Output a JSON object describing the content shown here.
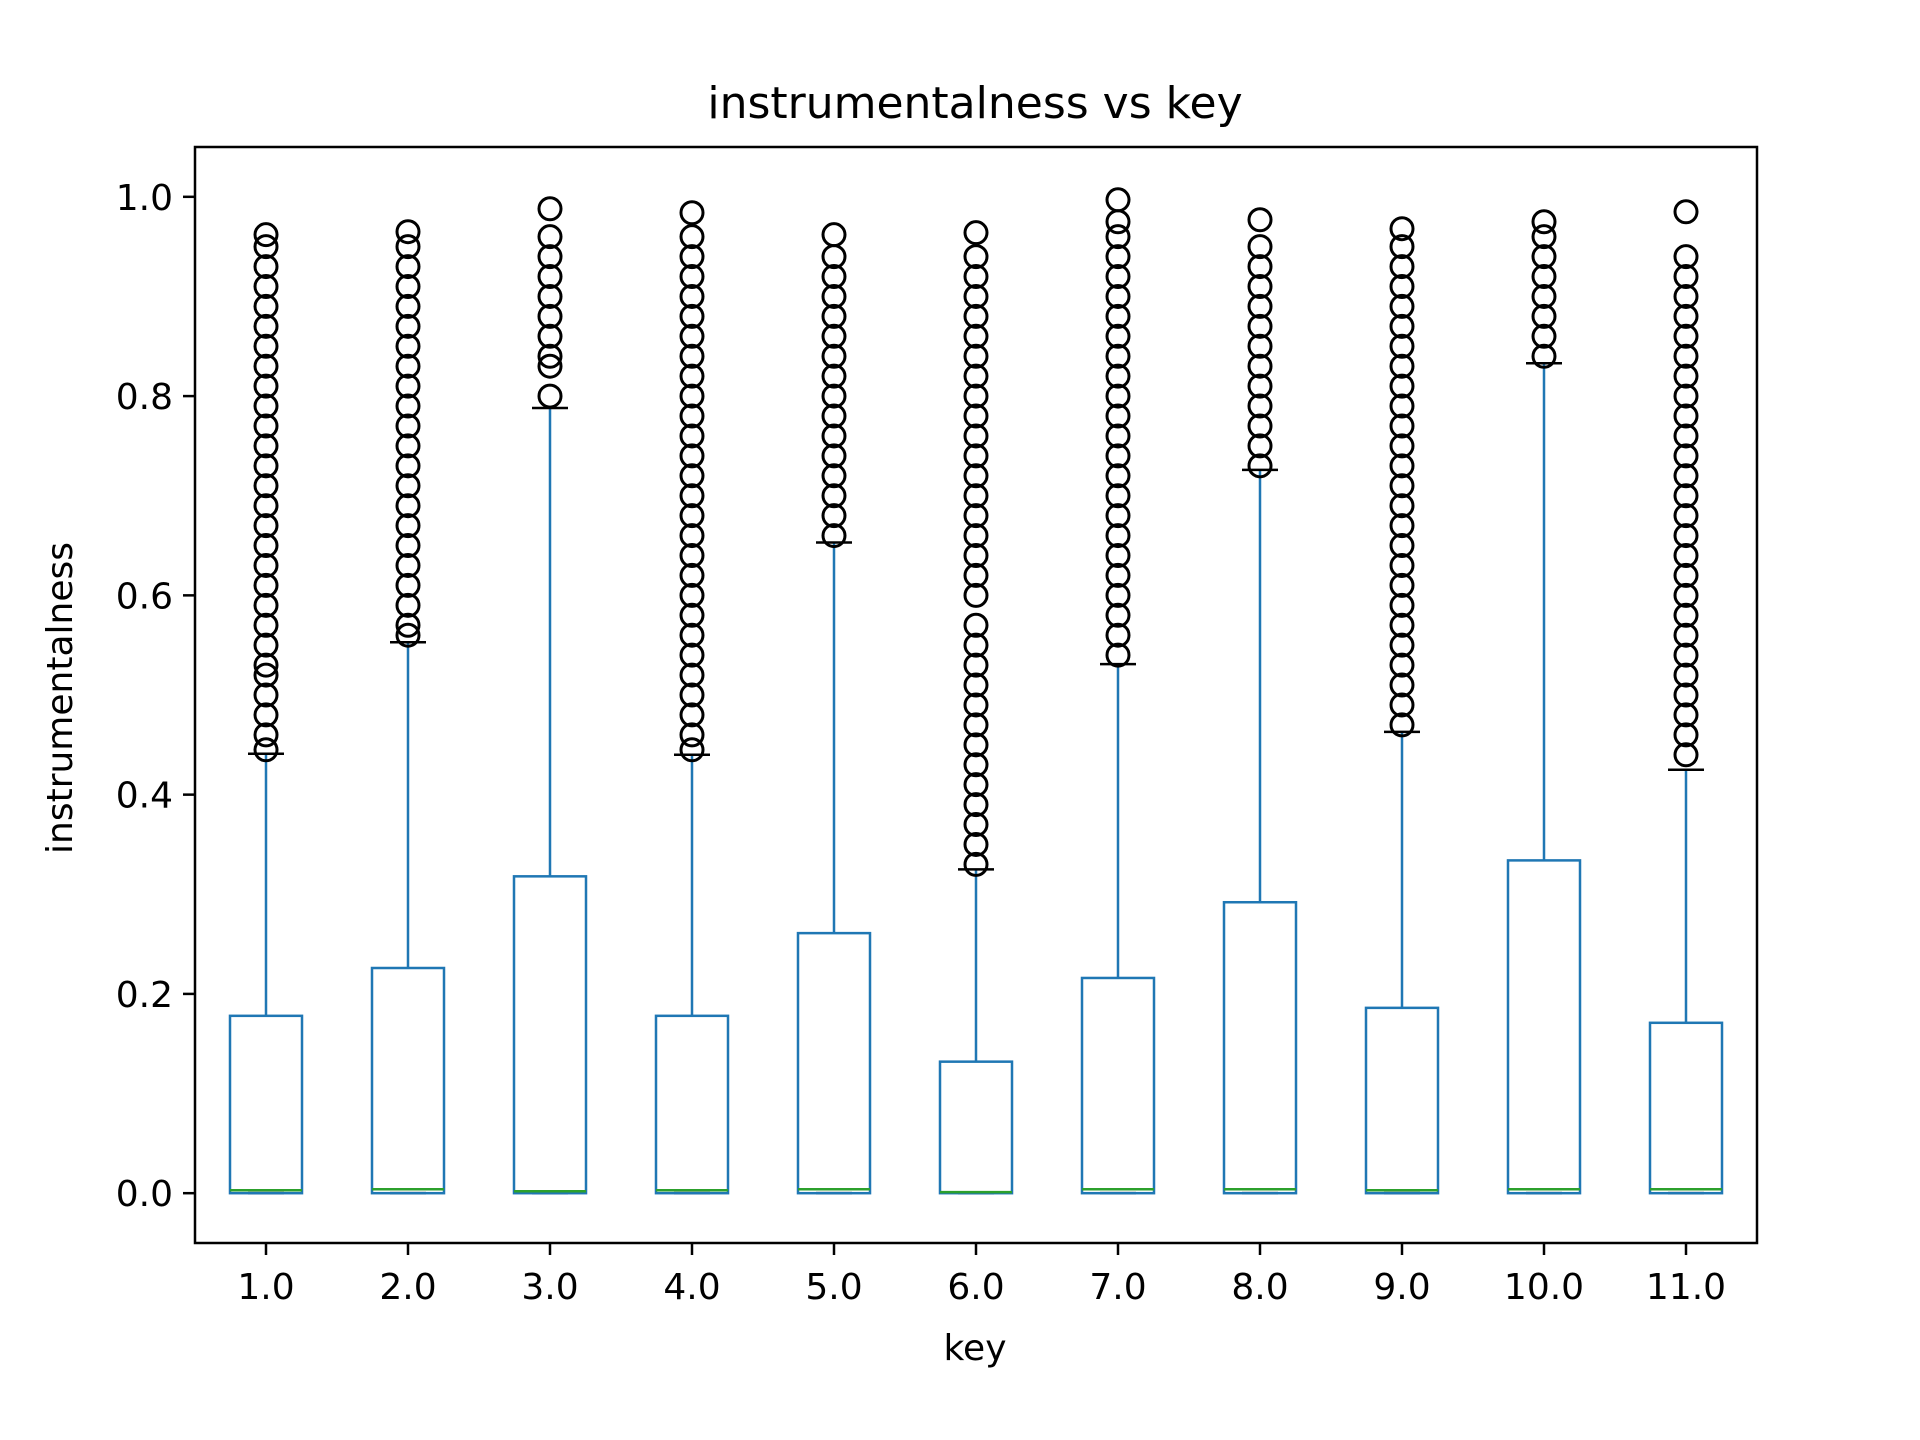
{
  "chart_data": {
    "type": "box",
    "title": "instrumentalness vs key",
    "xlabel": "key",
    "ylabel": "instrumentalness",
    "ylim": [
      -0.05,
      1.05
    ],
    "yticks": [
      0.0,
      0.2,
      0.4,
      0.6,
      0.8,
      1.0
    ],
    "ytick_labels": [
      "0.0",
      "0.2",
      "0.4",
      "0.6",
      "0.8",
      "1.0"
    ],
    "categories": [
      "1.0",
      "2.0",
      "3.0",
      "4.0",
      "5.0",
      "6.0",
      "7.0",
      "8.0",
      "9.0",
      "10.0",
      "11.0"
    ],
    "box_color": "#1f77b4",
    "median_color": "#2ca02c",
    "boxes": [
      {
        "q1": 0.0,
        "median": 0.003,
        "q3": 0.178,
        "whisker_low": 0.0,
        "whisker_high": 0.441,
        "outliers": [
          0.445,
          0.46,
          0.48,
          0.5,
          0.52,
          0.53,
          0.55,
          0.57,
          0.59,
          0.61,
          0.63,
          0.65,
          0.67,
          0.69,
          0.71,
          0.73,
          0.75,
          0.77,
          0.79,
          0.81,
          0.83,
          0.85,
          0.87,
          0.89,
          0.91,
          0.93,
          0.95,
          0.962
        ]
      },
      {
        "q1": 0.0,
        "median": 0.004,
        "q3": 0.226,
        "whisker_low": 0.0,
        "whisker_high": 0.553,
        "outliers": [
          0.56,
          0.57,
          0.59,
          0.61,
          0.63,
          0.65,
          0.67,
          0.69,
          0.71,
          0.73,
          0.75,
          0.77,
          0.79,
          0.81,
          0.83,
          0.85,
          0.87,
          0.89,
          0.91,
          0.93,
          0.95,
          0.965
        ]
      },
      {
        "q1": 0.0,
        "median": 0.002,
        "q3": 0.318,
        "whisker_low": 0.0,
        "whisker_high": 0.788,
        "outliers": [
          0.8,
          0.83,
          0.84,
          0.86,
          0.88,
          0.9,
          0.92,
          0.94,
          0.96,
          0.988
        ]
      },
      {
        "q1": 0.0,
        "median": 0.003,
        "q3": 0.178,
        "whisker_low": 0.0,
        "whisker_high": 0.44,
        "outliers": [
          0.445,
          0.46,
          0.48,
          0.5,
          0.52,
          0.54,
          0.56,
          0.58,
          0.6,
          0.62,
          0.64,
          0.66,
          0.68,
          0.7,
          0.72,
          0.74,
          0.76,
          0.78,
          0.8,
          0.82,
          0.84,
          0.86,
          0.88,
          0.9,
          0.92,
          0.94,
          0.96,
          0.984
        ]
      },
      {
        "q1": 0.0,
        "median": 0.004,
        "q3": 0.261,
        "whisker_low": 0.0,
        "whisker_high": 0.653,
        "outliers": [
          0.66,
          0.68,
          0.7,
          0.72,
          0.74,
          0.76,
          0.78,
          0.8,
          0.82,
          0.84,
          0.86,
          0.88,
          0.9,
          0.92,
          0.94,
          0.962
        ]
      },
      {
        "q1": 0.0,
        "median": 0.001,
        "q3": 0.132,
        "whisker_low": 0.0,
        "whisker_high": 0.325,
        "outliers": [
          0.33,
          0.35,
          0.37,
          0.39,
          0.41,
          0.43,
          0.45,
          0.47,
          0.49,
          0.51,
          0.53,
          0.55,
          0.57,
          0.6,
          0.62,
          0.64,
          0.66,
          0.68,
          0.7,
          0.72,
          0.74,
          0.76,
          0.78,
          0.8,
          0.82,
          0.84,
          0.86,
          0.88,
          0.9,
          0.92,
          0.94,
          0.964
        ]
      },
      {
        "q1": 0.0,
        "median": 0.004,
        "q3": 0.216,
        "whisker_low": 0.0,
        "whisker_high": 0.531,
        "outliers": [
          0.54,
          0.56,
          0.58,
          0.6,
          0.62,
          0.64,
          0.66,
          0.68,
          0.7,
          0.72,
          0.74,
          0.76,
          0.78,
          0.8,
          0.82,
          0.84,
          0.86,
          0.88,
          0.9,
          0.92,
          0.94,
          0.96,
          0.975,
          0.997
        ]
      },
      {
        "q1": 0.0,
        "median": 0.004,
        "q3": 0.292,
        "whisker_low": 0.0,
        "whisker_high": 0.726,
        "outliers": [
          0.73,
          0.75,
          0.77,
          0.79,
          0.81,
          0.83,
          0.85,
          0.87,
          0.89,
          0.91,
          0.93,
          0.95,
          0.977
        ]
      },
      {
        "q1": 0.0,
        "median": 0.003,
        "q3": 0.186,
        "whisker_low": 0.0,
        "whisker_high": 0.463,
        "outliers": [
          0.47,
          0.49,
          0.51,
          0.53,
          0.55,
          0.57,
          0.59,
          0.61,
          0.63,
          0.65,
          0.67,
          0.69,
          0.71,
          0.73,
          0.75,
          0.77,
          0.79,
          0.81,
          0.83,
          0.85,
          0.87,
          0.89,
          0.91,
          0.93,
          0.95,
          0.968
        ]
      },
      {
        "q1": 0.0,
        "median": 0.004,
        "q3": 0.334,
        "whisker_low": 0.0,
        "whisker_high": 0.833,
        "outliers": [
          0.84,
          0.86,
          0.88,
          0.9,
          0.92,
          0.94,
          0.96,
          0.975
        ]
      },
      {
        "q1": 0.0,
        "median": 0.004,
        "q3": 0.171,
        "whisker_low": 0.0,
        "whisker_high": 0.425,
        "outliers": [
          0.44,
          0.46,
          0.48,
          0.5,
          0.52,
          0.54,
          0.56,
          0.58,
          0.6,
          0.62,
          0.64,
          0.66,
          0.68,
          0.7,
          0.72,
          0.74,
          0.76,
          0.78,
          0.8,
          0.82,
          0.84,
          0.86,
          0.88,
          0.9,
          0.92,
          0.94,
          0.985
        ]
      }
    ]
  }
}
